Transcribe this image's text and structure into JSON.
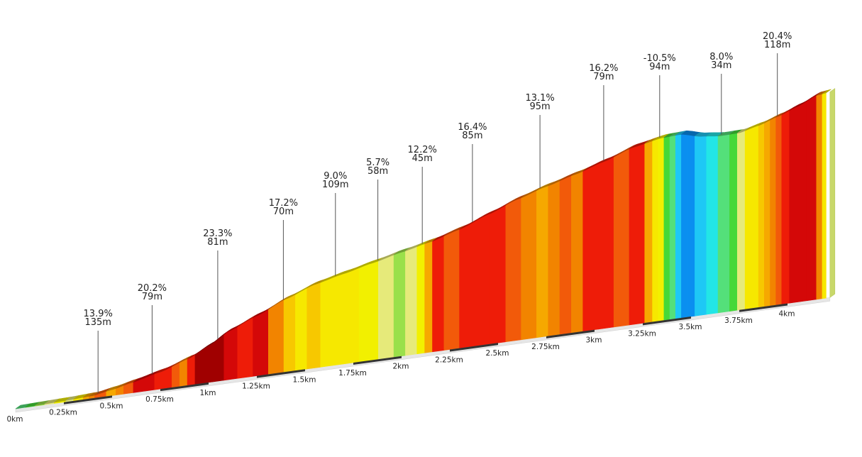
{
  "chart_data": {
    "type": "area",
    "title": "",
    "xlabel": "",
    "ylabel": "",
    "x_unit": "km",
    "x_range": [
      0,
      4.22
    ],
    "x_ticks": [
      "0km",
      "0.25km",
      "0.5km",
      "0.75km",
      "1km",
      "1.25km",
      "1.5km",
      "1.75km",
      "2km",
      "2.25km",
      "2.5km",
      "2.75km",
      "3km",
      "3.25km",
      "3.5km",
      "3.75km",
      "4km"
    ],
    "profile": {
      "x": [
        0,
        0.25,
        0.4,
        0.5,
        0.6,
        0.75,
        0.9,
        1.0,
        1.1,
        1.25,
        1.4,
        1.55,
        1.7,
        1.85,
        2.0,
        2.15,
        2.3,
        2.45,
        2.6,
        2.75,
        2.9,
        3.05,
        3.2,
        3.35,
        3.45,
        3.55,
        3.65,
        3.75,
        3.85,
        3.95,
        4.05,
        4.15,
        4.22
      ],
      "elevation_m": [
        0,
        3,
        6,
        14,
        24,
        40,
        63,
        86,
        113,
        141,
        171,
        196,
        212,
        228,
        244,
        259,
        279,
        305,
        331,
        352,
        371,
        392,
        416,
        429,
        431,
        420,
        415,
        416,
        427,
        442,
        459,
        479,
        483
      ]
    },
    "gradient_bands": {
      "x": [
        0,
        0.05,
        0.1,
        0.15,
        0.2,
        0.23,
        0.26,
        0.3,
        0.35,
        0.38,
        0.41,
        0.44,
        0.47,
        0.52,
        0.56,
        0.61,
        0.67,
        0.72,
        0.77,
        0.81,
        0.85,
        0.89,
        0.93,
        0.97,
        1.02,
        1.08,
        1.15,
        1.23,
        1.31,
        1.39,
        1.45,
        1.51,
        1.58,
        1.68,
        1.78,
        1.88,
        1.96,
        2.02,
        2.08,
        2.12,
        2.16,
        2.22,
        2.3,
        2.38,
        2.46,
        2.54,
        2.62,
        2.7,
        2.76,
        2.82,
        2.88,
        2.94,
        3.02,
        3.1,
        3.18,
        3.26,
        3.3,
        3.33,
        3.36,
        3.39,
        3.42,
        3.45,
        3.48,
        3.52,
        3.58,
        3.64,
        3.7,
        3.74,
        3.78,
        3.82,
        3.85,
        3.88,
        3.91,
        3.94,
        3.97,
        4.01,
        4.05,
        4.1,
        4.15,
        4.18,
        4.2
      ],
      "gradient_pct": [
        2,
        3,
        4,
        5,
        6,
        6,
        5,
        7,
        10,
        13,
        15,
        14,
        11,
        12,
        15,
        19,
        18,
        16,
        17,
        15,
        13,
        17,
        22,
        23,
        21,
        18,
        16,
        18,
        12,
        9,
        8,
        9,
        8,
        7,
        6,
        5,
        4,
        5,
        6,
        10,
        16,
        15,
        16,
        17,
        16,
        15,
        12,
        11,
        13,
        14,
        12,
        16,
        16,
        15,
        16,
        10,
        7,
        6,
        3,
        1,
        -4,
        -10,
        -10,
        -6,
        -2,
        2,
        3,
        5,
        7,
        8,
        9,
        11,
        13,
        14,
        16,
        18,
        20,
        20,
        12,
        7
      ]
    },
    "annotations": [
      {
        "x": 0.42,
        "gradient": "13.9%",
        "length": "135m"
      },
      {
        "x": 0.7,
        "gradient": "20.2%",
        "length": "79m"
      },
      {
        "x": 1.04,
        "gradient": "23.3%",
        "length": "81m"
      },
      {
        "x": 1.38,
        "gradient": "17.2%",
        "length": "70m"
      },
      {
        "x": 1.65,
        "gradient": "9.0%",
        "length": "109m"
      },
      {
        "x": 1.87,
        "gradient": "5.7%",
        "length": "58m"
      },
      {
        "x": 2.1,
        "gradient": "12.2%",
        "length": "45m"
      },
      {
        "x": 2.36,
        "gradient": "16.4%",
        "length": "85m"
      },
      {
        "x": 2.71,
        "gradient": "13.1%",
        "length": "95m"
      },
      {
        "x": 3.04,
        "gradient": "16.2%",
        "length": "79m"
      },
      {
        "x": 3.33,
        "gradient": "-10.5%",
        "length": "94m"
      },
      {
        "x": 3.65,
        "gradient": "8.0%",
        "length": "34m"
      },
      {
        "x": 3.94,
        "gradient": "20.4%",
        "length": "118m"
      }
    ],
    "grid": false,
    "legend": "none"
  }
}
